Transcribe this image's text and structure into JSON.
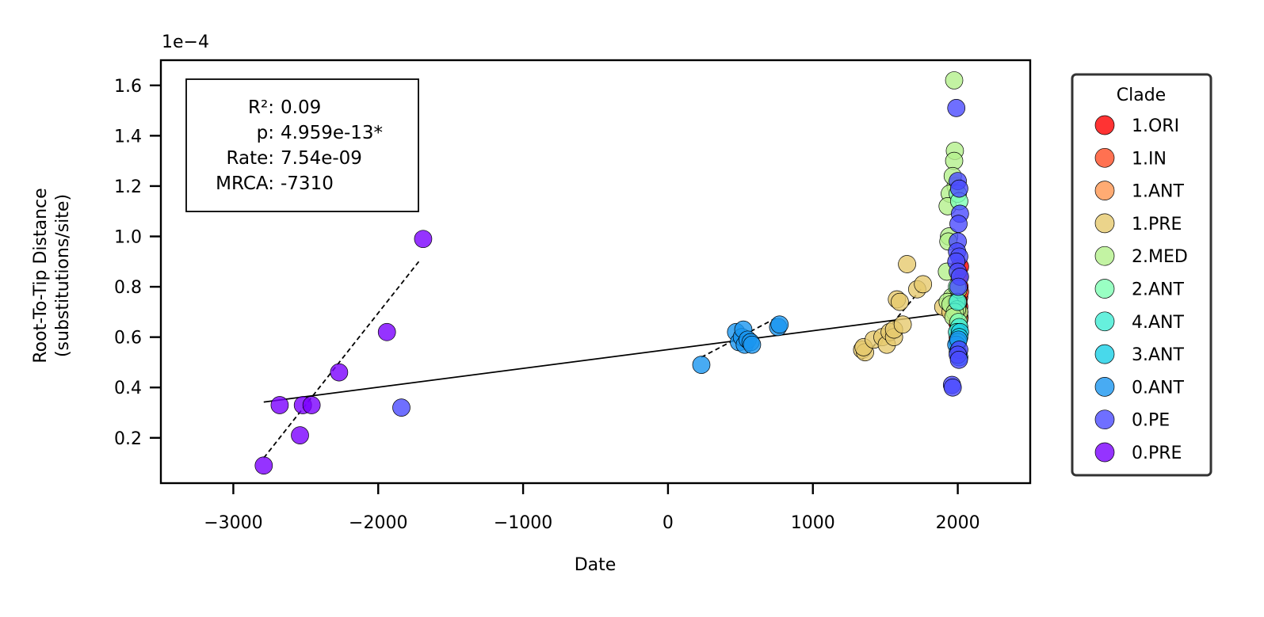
{
  "chart_data": {
    "type": "scatter",
    "xlabel": "Date",
    "ylabel_line1": "Root-To-Tip Distance",
    "ylabel_line2": "(substitutions/site)",
    "y_offset_label": "1e−4",
    "xlim": [
      -3500,
      2500
    ],
    "ylim": [
      0.02,
      1.7
    ],
    "x_ticks": [
      -3000,
      -2000,
      -1000,
      0,
      1000,
      2000
    ],
    "x_tick_labels": [
      "−3000",
      "−2000",
      "−1000",
      "0",
      "1000",
      "2000"
    ],
    "y_ticks": [
      0.2,
      0.4,
      0.6,
      0.8,
      1.0,
      1.2,
      1.4,
      1.6
    ],
    "y_tick_labels": [
      "0.2",
      "0.4",
      "0.6",
      "0.8",
      "1.0",
      "1.2",
      "1.4",
      "1.6"
    ],
    "grid": false,
    "stats": {
      "r2_label": "R²:",
      "r2_value": "0.09",
      "p_label": "p:",
      "p_value": "4.959e-13*",
      "rate_label": "Rate:",
      "rate_value": "7.54e-09",
      "mrca_label": "MRCA:",
      "mrca_value": "-7310"
    },
    "legend": {
      "title": "Clade",
      "placement": "outside-right"
    },
    "series": [
      {
        "name": "1.ORI",
        "color": "#ff0000",
        "points": [
          [
            2005,
            0.64
          ],
          [
            2010,
            0.72
          ],
          [
            2012,
            0.8
          ],
          [
            2008,
            0.84
          ],
          [
            2015,
            0.88
          ],
          [
            2000,
            0.6
          ],
          [
            2010,
            0.76
          ],
          [
            1995,
            0.66
          ]
        ]
      },
      {
        "name": "1.IN",
        "color": "#ff4d26",
        "points": [
          [
            2010,
            0.7
          ],
          [
            2015,
            0.78
          ],
          [
            2005,
            0.74
          ],
          [
            2012,
            0.68
          ]
        ]
      },
      {
        "name": "1.ANT",
        "color": "#ff9650",
        "points": [
          [
            2000,
            0.72
          ],
          [
            2010,
            0.67
          ]
        ]
      },
      {
        "name": "1.PRE",
        "color": "#e6c96e",
        "points": [
          [
            1340,
            0.55
          ],
          [
            1360,
            0.54
          ],
          [
            1350,
            0.56
          ],
          [
            1420,
            0.59
          ],
          [
            1480,
            0.6
          ],
          [
            1510,
            0.57
          ],
          [
            1530,
            0.62
          ],
          [
            1560,
            0.6
          ],
          [
            1560,
            0.63
          ],
          [
            1580,
            0.75
          ],
          [
            1600,
            0.74
          ],
          [
            1620,
            0.65
          ],
          [
            1650,
            0.89
          ],
          [
            1720,
            0.79
          ],
          [
            1760,
            0.81
          ],
          [
            1900,
            0.72
          ],
          [
            1950,
            0.7
          ],
          [
            1960,
            0.75
          ]
        ]
      },
      {
        "name": "2.MED",
        "color": "#b4f08c",
        "points": [
          [
            1975,
            1.62
          ],
          [
            1980,
            1.34
          ],
          [
            1975,
            1.3
          ],
          [
            1985,
            1.2
          ],
          [
            1965,
            1.24
          ],
          [
            1945,
            1.17
          ],
          [
            1930,
            1.12
          ],
          [
            1940,
            1.0
          ],
          [
            1935,
            0.98
          ],
          [
            1925,
            0.86
          ],
          [
            1960,
            0.76
          ],
          [
            1930,
            0.74
          ],
          [
            1990,
            0.74
          ],
          [
            1950,
            0.73
          ],
          [
            2010,
            0.7
          ],
          [
            2005,
            0.79
          ],
          [
            1995,
            0.71
          ],
          [
            1980,
            0.7
          ],
          [
            1970,
            0.68
          ]
        ]
      },
      {
        "name": "2.ANT",
        "color": "#80ffb4",
        "points": [
          [
            2000,
            1.17
          ],
          [
            2010,
            1.14
          ],
          [
            1995,
            0.8
          ],
          [
            2005,
            0.66
          ]
        ]
      },
      {
        "name": "4.ANT",
        "color": "#40ecd4",
        "points": [
          [
            2000,
            0.74
          ],
          [
            2010,
            0.64
          ],
          [
            1995,
            0.62
          ]
        ]
      },
      {
        "name": "3.ANT",
        "color": "#1ad0e6",
        "points": [
          [
            2015,
            0.62
          ],
          [
            2010,
            0.6
          ],
          [
            2000,
            0.58
          ]
        ]
      },
      {
        "name": "0.ANT",
        "color": "#1a96f0",
        "points": [
          [
            230,
            0.49
          ],
          [
            470,
            0.62
          ],
          [
            490,
            0.58
          ],
          [
            510,
            0.6
          ],
          [
            520,
            0.63
          ],
          [
            530,
            0.57
          ],
          [
            550,
            0.59
          ],
          [
            570,
            0.58
          ],
          [
            580,
            0.57
          ],
          [
            760,
            0.64
          ],
          [
            770,
            0.65
          ],
          [
            1990,
            0.57
          ],
          [
            2000,
            0.54
          ],
          [
            2010,
            0.52
          ],
          [
            2005,
            0.59
          ]
        ]
      },
      {
        "name": "0.PE",
        "color": "#4b4bff",
        "points": [
          [
            -1840,
            0.32
          ],
          [
            1960,
            0.41
          ],
          [
            1965,
            0.4
          ],
          [
            1990,
            1.51
          ],
          [
            2000,
            1.22
          ],
          [
            2010,
            1.19
          ],
          [
            2015,
            1.09
          ],
          [
            2005,
            1.05
          ],
          [
            2000,
            0.98
          ],
          [
            1995,
            0.94
          ],
          [
            2010,
            0.92
          ],
          [
            1990,
            0.9
          ],
          [
            2000,
            0.86
          ],
          [
            2015,
            0.84
          ],
          [
            2005,
            0.8
          ],
          [
            2010,
            0.55
          ],
          [
            2000,
            0.53
          ],
          [
            2008,
            0.51
          ]
        ]
      },
      {
        "name": "0.PRE",
        "color": "#7a00ff",
        "points": [
          [
            -2790,
            0.09
          ],
          [
            -2680,
            0.33
          ],
          [
            -2540,
            0.21
          ],
          [
            -2520,
            0.33
          ],
          [
            -2460,
            0.33
          ],
          [
            -2270,
            0.46
          ],
          [
            -1940,
            0.62
          ],
          [
            -1690,
            0.99
          ]
        ]
      }
    ],
    "regression": {
      "style": "solid",
      "x": [
        -2790,
        2000
      ],
      "y": [
        0.342,
        0.7
      ]
    },
    "clade_fits": [
      {
        "style": "dashed",
        "x": [
          -2790,
          -1720
        ],
        "y": [
          0.12,
          0.9
        ]
      },
      {
        "style": "dashed",
        "x": [
          230,
          760
        ],
        "y": [
          0.52,
          0.68
        ]
      },
      {
        "style": "dashed",
        "x": [
          1340,
          1760
        ],
        "y": [
          0.51,
          0.8
        ]
      }
    ]
  }
}
